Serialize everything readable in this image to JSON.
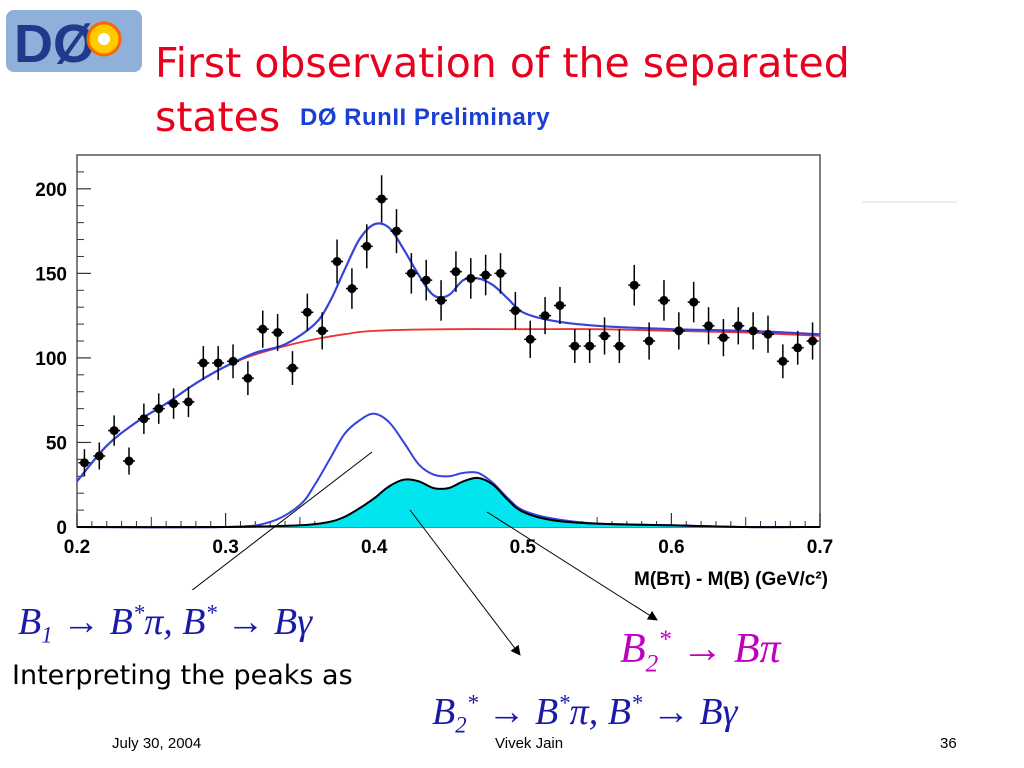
{
  "slide": {
    "title": "First observation of the separated states",
    "subtitle": "DØ RunII  Preliminary",
    "logo_text": "DØ",
    "interpret_text": "Interpreting the peaks as",
    "formulas": {
      "f1": "B1 → B*π,  B* → Bγ",
      "f2": "B2* → Bπ",
      "f3": "B2* → B*π,  B* → Bγ"
    },
    "footer": {
      "date": "July 30, 2004",
      "author": "Vivek Jain",
      "page": "36"
    },
    "colors": {
      "title": "#e8001c",
      "subtitle": "#1a3fd6",
      "formula_blue": "#1a1aa8",
      "formula_magenta": "#c000c0"
    }
  },
  "chart_data": {
    "type": "scatter",
    "xlabel": "M(Bπ) - M(B) (GeV/c²)",
    "ylabel": "",
    "xlim": [
      0.2,
      0.7
    ],
    "ylim": [
      0,
      220
    ],
    "xticks": [
      "0.2",
      "0.3",
      "0.4",
      "0.5",
      "0.6",
      "0.7"
    ],
    "yticks": [
      "0",
      "50",
      "100",
      "150",
      "200"
    ],
    "grid": false,
    "colors": {
      "total_fit": "#3344dd",
      "background": "#ee3333",
      "fill": "#00e5ee",
      "points": "#000000"
    },
    "series": [
      {
        "kind": "data_points",
        "x": [
          0.205,
          0.215,
          0.225,
          0.235,
          0.245,
          0.255,
          0.265,
          0.275,
          0.285,
          0.295,
          0.305,
          0.315,
          0.325,
          0.335,
          0.345,
          0.355,
          0.365,
          0.375,
          0.385,
          0.395,
          0.405,
          0.415,
          0.425,
          0.435,
          0.445,
          0.455,
          0.465,
          0.475,
          0.485,
          0.495,
          0.505,
          0.515,
          0.525,
          0.535,
          0.545,
          0.555,
          0.565,
          0.575,
          0.585,
          0.595,
          0.605,
          0.615,
          0.625,
          0.635,
          0.645,
          0.655,
          0.665,
          0.675,
          0.685,
          0.695
        ],
        "y": [
          38,
          42,
          57,
          39,
          64,
          70,
          73,
          74,
          97,
          97,
          98,
          88,
          117,
          115,
          94,
          127,
          116,
          157,
          141,
          166,
          194,
          175,
          150,
          146,
          134,
          151,
          147,
          149,
          150,
          128,
          111,
          125,
          131,
          107,
          107,
          113,
          107,
          143,
          110,
          134,
          116,
          133,
          119,
          112,
          119,
          116,
          114,
          98,
          106,
          110
        ],
        "yerr": [
          8,
          8,
          9,
          8,
          9,
          9,
          9,
          9,
          10,
          10,
          10,
          10,
          11,
          11,
          10,
          11,
          11,
          13,
          12,
          13,
          14,
          13,
          12,
          12,
          12,
          12,
          12,
          12,
          12,
          11,
          11,
          11,
          11,
          10,
          10,
          11,
          10,
          12,
          11,
          12,
          11,
          12,
          11,
          11,
          11,
          11,
          11,
          10,
          10,
          11
        ]
      },
      {
        "kind": "total_fit",
        "x": [
          0.2,
          0.22,
          0.24,
          0.26,
          0.28,
          0.3,
          0.32,
          0.34,
          0.36,
          0.37,
          0.38,
          0.39,
          0.4,
          0.41,
          0.42,
          0.43,
          0.44,
          0.45,
          0.46,
          0.47,
          0.48,
          0.49,
          0.5,
          0.52,
          0.55,
          0.6,
          0.65,
          0.7
        ],
        "y": [
          27,
          48,
          62,
          73,
          85,
          95,
          103,
          108,
          120,
          133,
          152,
          170,
          179,
          177,
          164,
          149,
          137,
          137,
          146,
          147,
          143,
          135,
          127,
          122,
          119,
          117,
          116,
          114
        ]
      },
      {
        "kind": "background_fit",
        "x": [
          0.2,
          0.22,
          0.24,
          0.26,
          0.28,
          0.3,
          0.32,
          0.34,
          0.36,
          0.38,
          0.4,
          0.45,
          0.5,
          0.55,
          0.6,
          0.65,
          0.7
        ],
        "y": [
          27,
          48,
          62,
          73,
          85,
          95,
          102,
          107,
          111,
          114,
          116,
          117,
          117,
          117,
          116,
          115,
          113
        ]
      },
      {
        "kind": "signal_sum",
        "x": [
          0.2,
          0.3,
          0.33,
          0.35,
          0.36,
          0.37,
          0.38,
          0.39,
          0.4,
          0.41,
          0.42,
          0.43,
          0.44,
          0.45,
          0.46,
          0.47,
          0.48,
          0.49,
          0.5,
          0.52,
          0.55,
          0.6,
          0.65,
          0.7
        ],
        "y": [
          0,
          0,
          3,
          13,
          25,
          40,
          55,
          63,
          67,
          62,
          50,
          37,
          31,
          30,
          32,
          32,
          26,
          17,
          10,
          5,
          2,
          1,
          0,
          0
        ]
      },
      {
        "kind": "b2_component",
        "x": [
          0.2,
          0.3,
          0.35,
          0.37,
          0.38,
          0.39,
          0.4,
          0.41,
          0.42,
          0.43,
          0.44,
          0.45,
          0.46,
          0.47,
          0.48,
          0.49,
          0.5,
          0.52,
          0.55,
          0.6,
          0.65,
          0.7
        ],
        "y": [
          0,
          0,
          1,
          3,
          6,
          11,
          17,
          24,
          28,
          27,
          23,
          23,
          27,
          29,
          25,
          16,
          9,
          4,
          2,
          1,
          0,
          0
        ]
      }
    ]
  }
}
